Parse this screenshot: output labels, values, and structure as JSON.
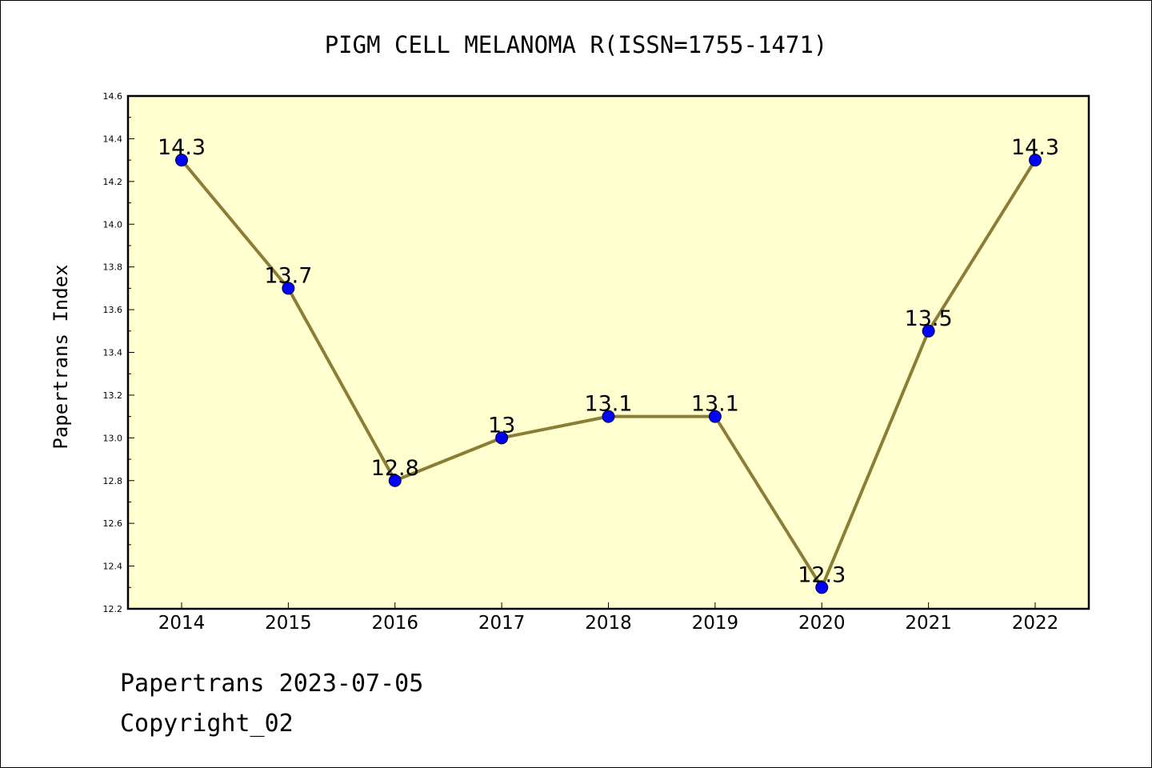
{
  "chart_data": {
    "type": "line",
    "title": "PIGM CELL MELANOMA R(ISSN=1755-1471)",
    "xlabel": "",
    "ylabel": "Papertrans Index",
    "categories": [
      "2014",
      "2015",
      "2016",
      "2017",
      "2018",
      "2019",
      "2020",
      "2021",
      "2022"
    ],
    "series": [
      {
        "values": [
          14.3,
          13.7,
          12.8,
          13.0,
          13.1,
          13.1,
          12.3,
          13.5,
          14.3
        ],
        "labels": [
          "14.3",
          "13.7",
          "12.8",
          "13",
          "13.1",
          "13.1",
          "12.3",
          "13.5",
          "14.3"
        ]
      }
    ],
    "ylim": [
      12.2,
      14.6
    ],
    "yticks": [
      "12.2",
      "12.4",
      "12.6",
      "12.8",
      "13.0",
      "13.2",
      "13.4",
      "13.6",
      "13.8",
      "14.0",
      "14.2",
      "14.4",
      "14.6"
    ],
    "grid": false,
    "legend": "none",
    "colors": {
      "line": "#8b7d35",
      "marker": "#0000ff",
      "plot_background": "#ffffd0"
    }
  },
  "footer": {
    "line1": "Papertrans 2023-07-05",
    "line2": "Copyright_02"
  }
}
